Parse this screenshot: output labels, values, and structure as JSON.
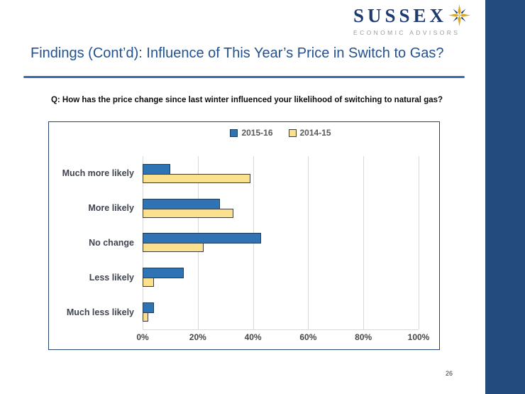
{
  "slide": {
    "page_number": "26",
    "accent_bar_color": "#234B7D"
  },
  "logo": {
    "name": "SUSSEX",
    "subtitle": "ECONOMIC ADVISORS",
    "gold": "#D9A927",
    "navy": "#1F3A6E"
  },
  "header": {
    "title": "Findings (Cont’d): Influence of This Year’s Price in Switch to Gas?",
    "title_color": "#23518F",
    "rule_color": "#3A68AE"
  },
  "question": {
    "text": "Q: How has the price change since last winter influenced your likelihood of switching to natural gas?"
  },
  "chart_data": {
    "type": "bar",
    "orientation": "horizontal",
    "title": "",
    "xlabel": "",
    "ylabel": "",
    "categories": [
      "Much more likely",
      "More likely",
      "No change",
      "Less likely",
      "Much less likely"
    ],
    "series": [
      {
        "name": "2015-16",
        "values": [
          10,
          28,
          43,
          15,
          4
        ],
        "fill": "#2E74B5",
        "border": "#1C3C5E"
      },
      {
        "name": "2014-15",
        "values": [
          39,
          33,
          22,
          4,
          2
        ],
        "fill": "#FBE08E",
        "border": "#3B3B3B"
      }
    ],
    "xlim": [
      0,
      100
    ],
    "x_ticks": [
      "0%",
      "20%",
      "40%",
      "60%",
      "80%",
      "100%"
    ],
    "x_tick_values": [
      0,
      20,
      40,
      60,
      80,
      100
    ],
    "grid": true,
    "gridline_color": "#D9D9D9",
    "legend_position": "top-center",
    "values_unit": "percent"
  }
}
